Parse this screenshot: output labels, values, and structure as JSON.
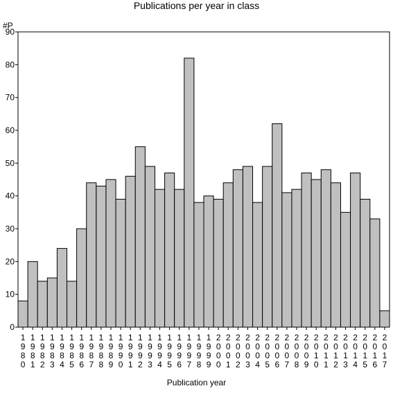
{
  "chart_data": {
    "type": "bar",
    "title": "Publications per year in class",
    "ylabel": "#P",
    "xlabel": "Publication year",
    "ylim": [
      0,
      90
    ],
    "yticks": [
      0,
      10,
      20,
      30,
      40,
      50,
      60,
      70,
      80,
      90
    ],
    "grid": false,
    "bar_color": "#c0c0c0",
    "categories": [
      "1980",
      "1981",
      "1982",
      "1983",
      "1984",
      "1985",
      "1986",
      "1987",
      "1988",
      "1989",
      "1990",
      "1991",
      "1992",
      "1993",
      "1994",
      "1995",
      "1996",
      "1997",
      "1998",
      "1999",
      "2000",
      "2001",
      "2002",
      "2003",
      "2004",
      "2005",
      "2006",
      "2007",
      "2008",
      "2009",
      "2010",
      "2011",
      "2012",
      "2013",
      "2014",
      "2015",
      "2016",
      "2017"
    ],
    "values": [
      8,
      20,
      14,
      15,
      24,
      14,
      30,
      44,
      43,
      45,
      39,
      46,
      55,
      49,
      42,
      47,
      42,
      82,
      38,
      40,
      39,
      44,
      48,
      49,
      38,
      49,
      62,
      41,
      42,
      47,
      45,
      48,
      44,
      35,
      47,
      39,
      33,
      5
    ]
  }
}
